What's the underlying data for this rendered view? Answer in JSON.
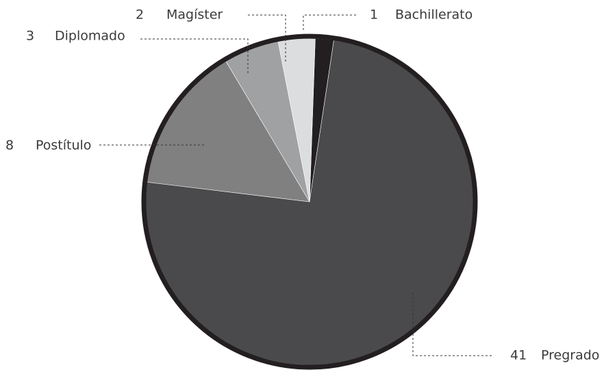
{
  "chart_data": {
    "type": "pie",
    "categories": [
      "Bachillerato",
      "Pregrado",
      "Postítulo",
      "Diplomado",
      "Magíster"
    ],
    "values": [
      1,
      41,
      8,
      3,
      2
    ],
    "colors": [
      "#231f20",
      "#4a4a4c",
      "#808080",
      "#a0a1a3",
      "#dcdddf"
    ]
  }
}
